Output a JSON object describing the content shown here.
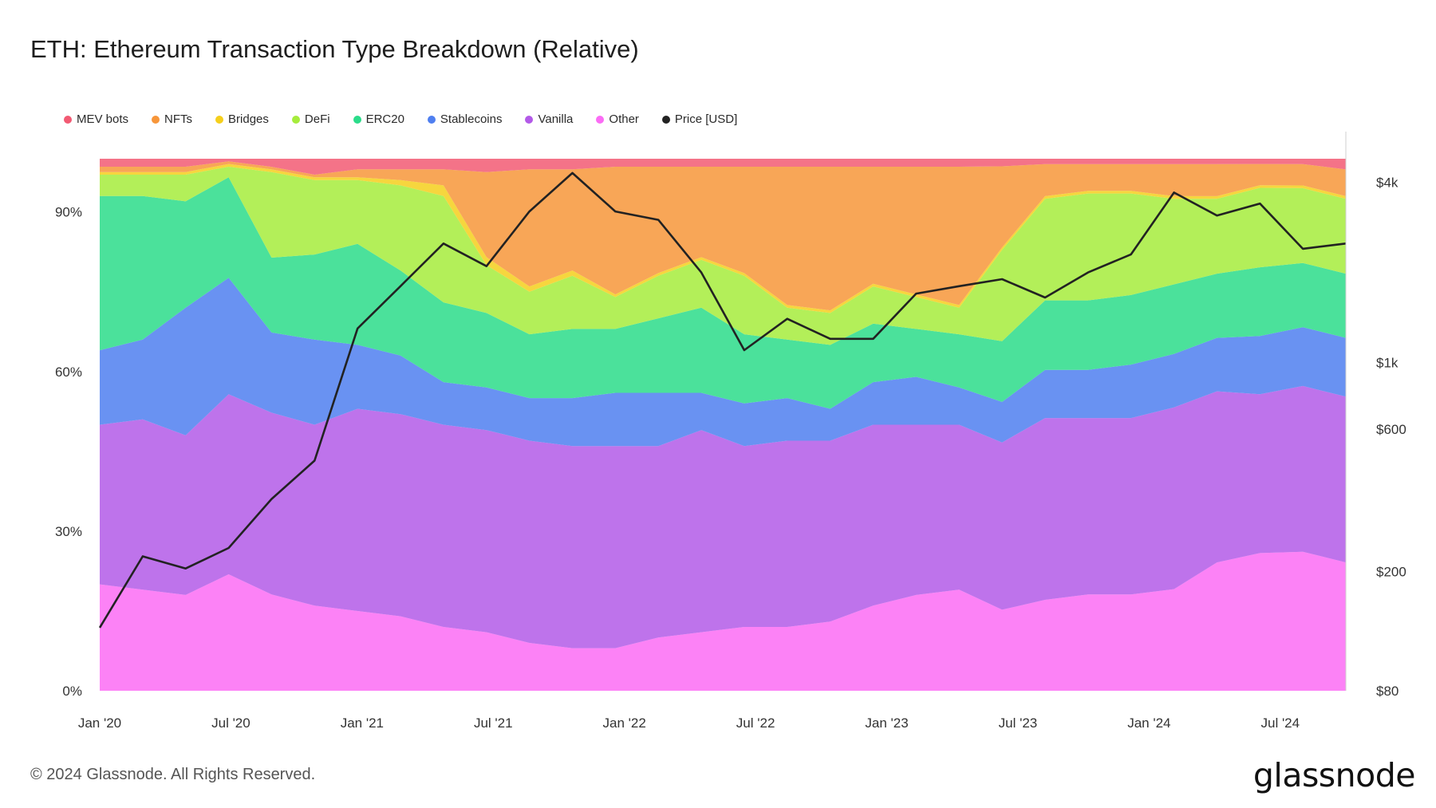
{
  "title": "ETH: Ethereum Transaction Type Breakdown (Relative)",
  "footer": "© 2024 Glassnode. All Rights Reserved.",
  "logo": "glassnode",
  "legend": [
    {
      "label": "MEV bots",
      "color": "#f25a73"
    },
    {
      "label": "NFTs",
      "color": "#f7963a"
    },
    {
      "label": "Bridges",
      "color": "#f5cf1c"
    },
    {
      "label": "DeFi",
      "color": "#a6ec3c"
    },
    {
      "label": "ERC20",
      "color": "#2bdc8a"
    },
    {
      "label": "Stablecoins",
      "color": "#4f7ff0"
    },
    {
      "label": "Vanilla",
      "color": "#b35ae8"
    },
    {
      "label": "Other",
      "color": "#fb6cf5"
    },
    {
      "label": "Price [USD]",
      "color": "#222222"
    }
  ],
  "chart_data": {
    "type": "area",
    "stacked": true,
    "normalized": true,
    "title": "ETH: Ethereum Transaction Type Breakdown (Relative)",
    "x_ticks": [
      "Jan '20",
      "Jul '20",
      "Jan '21",
      "Jul '21",
      "Jan '22",
      "Jul '22",
      "Jan '23",
      "Jul '23",
      "Jan '24",
      "Jul '24"
    ],
    "y_left_ticks": [
      "0%",
      "30%",
      "60%",
      "90%"
    ],
    "y_right_ticks": [
      "$80",
      "$200",
      "$600",
      "$1k",
      "$4k"
    ],
    "y_right_scale": "log",
    "y_left_range": [
      0,
      100
    ],
    "y_right_range": [
      80,
      4800
    ],
    "x": [
      "2020-01",
      "2020-03",
      "2020-05",
      "2020-07",
      "2020-09",
      "2020-11",
      "2021-01",
      "2021-03",
      "2021-05",
      "2021-07",
      "2021-09",
      "2021-11",
      "2022-01",
      "2022-03",
      "2022-05",
      "2022-07",
      "2022-09",
      "2022-11",
      "2023-01",
      "2023-03",
      "2023-05",
      "2023-07",
      "2023-09",
      "2023-11",
      "2024-01",
      "2024-03",
      "2024-05",
      "2024-07",
      "2024-09",
      "2024-10"
    ],
    "series": [
      {
        "name": "Other",
        "color": "#fb6cf5",
        "values": [
          20,
          19,
          18,
          22,
          18,
          16,
          15,
          14,
          12,
          11,
          9,
          8,
          8,
          10,
          11,
          12,
          12,
          13,
          16,
          18,
          19,
          16,
          17,
          18,
          18,
          19,
          24,
          26,
          26,
          24
        ]
      },
      {
        "name": "Vanilla",
        "color": "#b35ae8",
        "values": [
          30,
          32,
          30,
          34,
          34,
          34,
          38,
          38,
          38,
          38,
          38,
          38,
          38,
          36,
          38,
          34,
          35,
          34,
          34,
          32,
          31,
          33,
          34,
          33,
          33,
          34,
          32,
          30,
          31,
          31
        ]
      },
      {
        "name": "Stablecoins",
        "color": "#4f7ff0",
        "values": [
          14,
          15,
          24,
          22,
          15,
          16,
          12,
          11,
          8,
          8,
          8,
          9,
          10,
          10,
          7,
          8,
          8,
          6,
          8,
          9,
          7,
          8,
          9,
          9,
          10,
          10,
          10,
          11,
          11,
          11
        ]
      },
      {
        "name": "ERC20",
        "color": "#2bdc8a",
        "values": [
          29,
          27,
          20,
          19,
          14,
          16,
          19,
          16,
          15,
          14,
          12,
          13,
          12,
          14,
          16,
          13,
          11,
          12,
          11,
          9,
          10,
          12,
          13,
          13,
          13,
          13,
          12,
          13,
          12,
          12
        ]
      },
      {
        "name": "DeFi",
        "color": "#a6ec3c",
        "values": [
          4,
          4,
          5,
          2,
          16,
          14,
          12,
          16,
          20,
          9,
          8,
          10,
          6,
          8,
          9,
          11,
          6,
          6,
          7,
          6,
          5,
          18,
          19,
          20,
          19,
          16,
          14,
          15,
          14,
          14
        ]
      },
      {
        "name": "Bridges",
        "color": "#f5cf1c",
        "values": [
          0.5,
          0.5,
          0.5,
          0.5,
          0.5,
          0.5,
          0.5,
          1,
          2,
          1.5,
          1,
          1,
          0.5,
          0.5,
          0.5,
          0.5,
          0.5,
          0.5,
          0.5,
          0.5,
          0.5,
          0.5,
          0.5,
          0.5,
          0.5,
          0.5,
          0.5,
          0.5,
          0.5,
          0.5
        ]
      },
      {
        "name": "NFTs",
        "color": "#f7963a",
        "values": [
          1,
          1,
          1,
          0.5,
          0.5,
          0.5,
          1.5,
          2,
          3,
          16,
          22,
          19,
          24,
          20,
          17,
          20,
          26,
          27,
          22,
          24,
          26,
          16,
          6,
          5,
          5,
          6,
          6,
          4,
          4,
          5
        ]
      },
      {
        "name": "MEV bots",
        "color": "#f25a73",
        "values": [
          1.5,
          1.5,
          1.5,
          0.5,
          1.5,
          3,
          2,
          2,
          2,
          2.5,
          2,
          2,
          1.5,
          1.5,
          1.5,
          1.5,
          1.5,
          1.5,
          1.5,
          1.5,
          1.5,
          1.5,
          1,
          1,
          1,
          1,
          1,
          1,
          1,
          2
        ]
      }
    ],
    "price": {
      "name": "Price [USD]",
      "color": "#222222",
      "values": [
        130,
        225,
        205,
        240,
        350,
        470,
        1300,
        1800,
        2500,
        2100,
        3200,
        4300,
        3200,
        3000,
        2000,
        1100,
        1400,
        1200,
        1200,
        1700,
        1800,
        1900,
        1650,
        2000,
        2300,
        3700,
        3100,
        3400,
        2400,
        2500
      ]
    }
  }
}
